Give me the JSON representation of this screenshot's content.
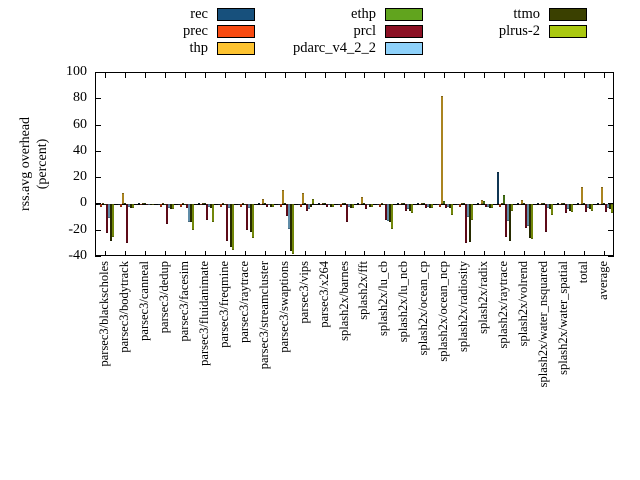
{
  "chart_data": {
    "type": "bar",
    "title": "",
    "xlabel": "",
    "ylabel": "rss.avg overhead (percent)",
    "ylabel_line1": "rss.avg overhead",
    "ylabel_line2": "(percent)",
    "ylim": [
      -40,
      100
    ],
    "yticks": [
      100,
      80,
      60,
      40,
      20,
      0,
      -20,
      -40
    ],
    "grid": false,
    "legend_position": "top",
    "legend_columns": 3,
    "categories": [
      "parsec3/blackscholes",
      "parsec3/bodytrack",
      "parsec3/canneal",
      "parsec3/dedup",
      "parsec3/facesim",
      "parsec3/fluidanimate",
      "parsec3/freqmine",
      "parsec3/raytrace",
      "parsec3/streamcluster",
      "parsec3/swaptions",
      "parsec3/vips",
      "parsec3/x264",
      "splash2x/barnes",
      "splash2x/fft",
      "splash2x/lu_cb",
      "splash2x/lu_ncb",
      "splash2x/ocean_cp",
      "splash2x/ocean_ncp",
      "splash2x/radiosity",
      "splash2x/radix",
      "splash2x/raytrace",
      "splash2x/volrend",
      "splash2x/water_nsquared",
      "splash2x/water_spatial",
      "total",
      "average"
    ],
    "series": [
      {
        "name": "rec",
        "color": "#17507c",
        "values": [
          -1,
          -1,
          0,
          -1,
          -1,
          0,
          -1,
          -1,
          0,
          -1,
          -1,
          0,
          -1,
          0,
          -1,
          0,
          0,
          -1,
          -1,
          0,
          24,
          0,
          0,
          0,
          0,
          0
        ]
      },
      {
        "name": "prec",
        "color": "#f84a10",
        "values": [
          -2,
          -2,
          -1,
          -2,
          -2,
          -1,
          -2,
          -2,
          -1,
          -2,
          -2,
          -1,
          -2,
          -1,
          -2,
          -1,
          -1,
          -2,
          -2,
          -1,
          -2,
          -1,
          -1,
          -1,
          -1,
          -1
        ]
      },
      {
        "name": "thp",
        "color": "#fdc330",
        "values": [
          0,
          8,
          0,
          0,
          0,
          0,
          0,
          0,
          4,
          11,
          8,
          0,
          0,
          5,
          0,
          1,
          0,
          82,
          0,
          3,
          0,
          3,
          0,
          1,
          13,
          13
        ]
      },
      {
        "name": "ethp",
        "color": "#61a41e",
        "values": [
          -1,
          1,
          0,
          -1,
          -1,
          0,
          -1,
          -1,
          0,
          1,
          1,
          0,
          1,
          0,
          -1,
          0,
          1,
          2,
          1,
          2,
          7,
          1,
          0,
          0,
          1,
          1
        ]
      },
      {
        "name": "prcl",
        "color": "#8b1024",
        "values": [
          -22,
          -30,
          -1,
          -15,
          -3,
          -12,
          -28,
          -20,
          -2,
          -9,
          -5,
          -2,
          -14,
          -4,
          -12,
          -5,
          -3,
          -3,
          -30,
          -2,
          -25,
          -18,
          -21,
          -7,
          -6,
          -6
        ]
      },
      {
        "name": "pdarc_v4_2_2",
        "color": "#8ed1fa",
        "values": [
          -11,
          -2,
          -1,
          -3,
          -14,
          -2,
          -3,
          -3,
          -1,
          -19,
          -4,
          -1,
          -2,
          -1,
          -13,
          -4,
          -2,
          -2,
          -10,
          -2,
          -13,
          -17,
          -3,
          -4,
          -3,
          -3
        ]
      },
      {
        "name": "ttmo",
        "color": "#3a4000",
        "values": [
          -28,
          -3,
          -1,
          -4,
          -14,
          -3,
          -33,
          -21,
          -2,
          -36,
          -2,
          -2,
          -3,
          -2,
          -14,
          -5,
          -3,
          -3,
          -29,
          -3,
          -28,
          -26,
          -4,
          -5,
          -4,
          -4
        ]
      },
      {
        "name": "plrus-2",
        "color": "#aac810",
        "values": [
          -25,
          -3,
          -1,
          -4,
          -20,
          -14,
          -35,
          -26,
          -2,
          -38,
          4,
          -2,
          -3,
          -2,
          -19,
          -7,
          -3,
          -8,
          -12,
          -3,
          -5,
          -27,
          -8,
          -6,
          -5,
          -7
        ]
      }
    ]
  }
}
